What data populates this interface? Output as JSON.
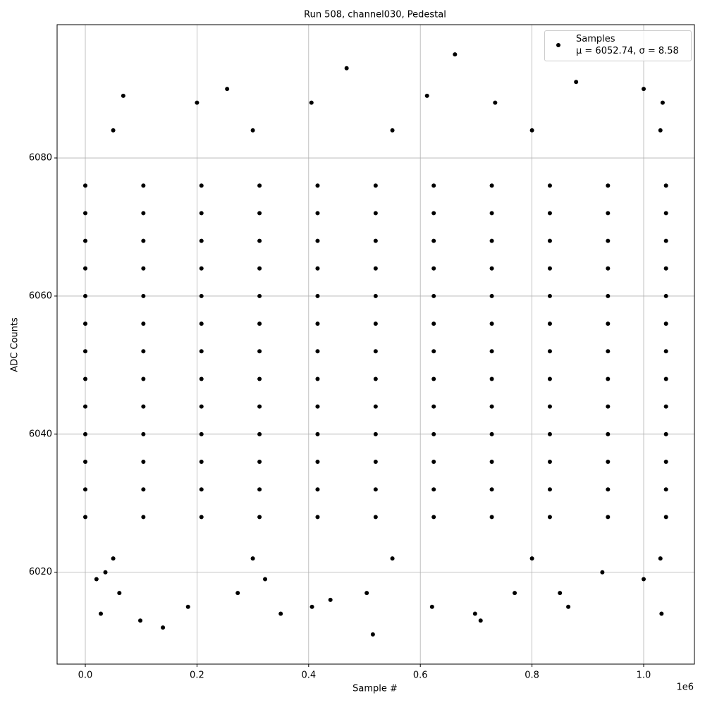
{
  "chart_data": {
    "type": "scatter",
    "title": "Run 508, channel030, Pedestal",
    "x_label": "Sample #",
    "y_label": "ADC Counts",
    "x_offset_label": "1e6",
    "xlim": [
      -50500,
      1090900
    ],
    "ylim": [
      6006.7,
      6099.3
    ],
    "xticks": [
      {
        "value": 0,
        "label": "0.0"
      },
      {
        "value": 200000,
        "label": "0.2"
      },
      {
        "value": 400000,
        "label": "0.4"
      },
      {
        "value": 600000,
        "label": "0.6"
      },
      {
        "value": 800000,
        "label": "0.8"
      },
      {
        "value": 1000000,
        "label": "1.0"
      }
    ],
    "yticks": [
      6020,
      6040,
      6060,
      6080
    ],
    "grid": true,
    "legend": "upper right",
    "x": [
      0,
      104000,
      208000,
      312000,
      416000,
      520000,
      624000,
      728000,
      832000,
      936000,
      1040000,
      0,
      104000,
      208000,
      312000,
      416000,
      520000,
      624000,
      728000,
      832000,
      936000,
      1040000,
      0,
      104000,
      208000,
      312000,
      416000,
      520000,
      624000,
      728000,
      832000,
      936000,
      1040000,
      0,
      104000,
      208000,
      312000,
      416000,
      520000,
      624000,
      728000,
      832000,
      936000,
      1040000,
      0,
      104000,
      208000,
      312000,
      416000,
      520000,
      624000,
      728000,
      832000,
      936000,
      1040000,
      0,
      104000,
      208000,
      312000,
      416000,
      520000,
      624000,
      728000,
      832000,
      936000,
      1040000,
      0,
      104000,
      208000,
      312000,
      416000,
      520000,
      624000,
      728000,
      832000,
      936000,
      1040000,
      0,
      104000,
      208000,
      312000,
      416000,
      520000,
      624000,
      728000,
      832000,
      936000,
      1040000,
      0,
      104000,
      208000,
      312000,
      416000,
      520000,
      624000,
      728000,
      832000,
      936000,
      1040000,
      0,
      104000,
      208000,
      312000,
      416000,
      520000,
      624000,
      728000,
      832000,
      936000,
      1040000,
      0,
      104000,
      208000,
      312000,
      416000,
      520000,
      624000,
      728000,
      832000,
      936000,
      1040000,
      0,
      104000,
      208000,
      312000,
      416000,
      520000,
      624000,
      728000,
      832000,
      936000,
      1040000,
      0,
      104000,
      208000,
      312000,
      416000,
      520000,
      624000,
      728000,
      832000,
      936000,
      1040000,
      27800,
      98500,
      139000,
      515000,
      662000,
      468000,
      254000,
      879000,
      1000000,
      68000,
      612000,
      405000,
      350000,
      698000,
      708000,
      1032000,
      439000,
      184000,
      406000,
      621000,
      865000,
      61000,
      273000,
      504000,
      769000,
      850000,
      20000,
      322000,
      1000000,
      200000,
      734000,
      1034000,
      926000,
      36000,
      50000,
      300000,
      550000,
      800000,
      1030000,
      50000,
      300000,
      550000,
      800000,
      1030000
    ],
    "series": [
      {
        "name": "Samples\nμ = 6052.74, σ = 8.58",
        "color": "#000000",
        "values": [
          6028,
          6028,
          6028,
          6028,
          6028,
          6028,
          6028,
          6028,
          6028,
          6028,
          6028,
          6032,
          6032,
          6032,
          6032,
          6032,
          6032,
          6032,
          6032,
          6032,
          6032,
          6032,
          6036,
          6036,
          6036,
          6036,
          6036,
          6036,
          6036,
          6036,
          6036,
          6036,
          6036,
          6040,
          6040,
          6040,
          6040,
          6040,
          6040,
          6040,
          6040,
          6040,
          6040,
          6040,
          6044,
          6044,
          6044,
          6044,
          6044,
          6044,
          6044,
          6044,
          6044,
          6044,
          6044,
          6048,
          6048,
          6048,
          6048,
          6048,
          6048,
          6048,
          6048,
          6048,
          6048,
          6048,
          6052,
          6052,
          6052,
          6052,
          6052,
          6052,
          6052,
          6052,
          6052,
          6052,
          6052,
          6056,
          6056,
          6056,
          6056,
          6056,
          6056,
          6056,
          6056,
          6056,
          6056,
          6056,
          6060,
          6060,
          6060,
          6060,
          6060,
          6060,
          6060,
          6060,
          6060,
          6060,
          6060,
          6064,
          6064,
          6064,
          6064,
          6064,
          6064,
          6064,
          6064,
          6064,
          6064,
          6064,
          6068,
          6068,
          6068,
          6068,
          6068,
          6068,
          6068,
          6068,
          6068,
          6068,
          6068,
          6072,
          6072,
          6072,
          6072,
          6072,
          6072,
          6072,
          6072,
          6072,
          6072,
          6072,
          6076,
          6076,
          6076,
          6076,
          6076,
          6076,
          6076,
          6076,
          6076,
          6076,
          6076,
          6014,
          6013,
          6012,
          6011,
          6095,
          6093,
          6090,
          6091,
          6090,
          6089,
          6089,
          6088,
          6014,
          6014,
          6013,
          6014,
          6016,
          6015,
          6015,
          6015,
          6015,
          6017,
          6017,
          6017,
          6017,
          6017,
          6019,
          6019,
          6019,
          6088,
          6088,
          6088,
          6020,
          6020,
          6084,
          6084,
          6084,
          6084,
          6084,
          6022,
          6022,
          6022,
          6022,
          6022
        ]
      }
    ]
  }
}
